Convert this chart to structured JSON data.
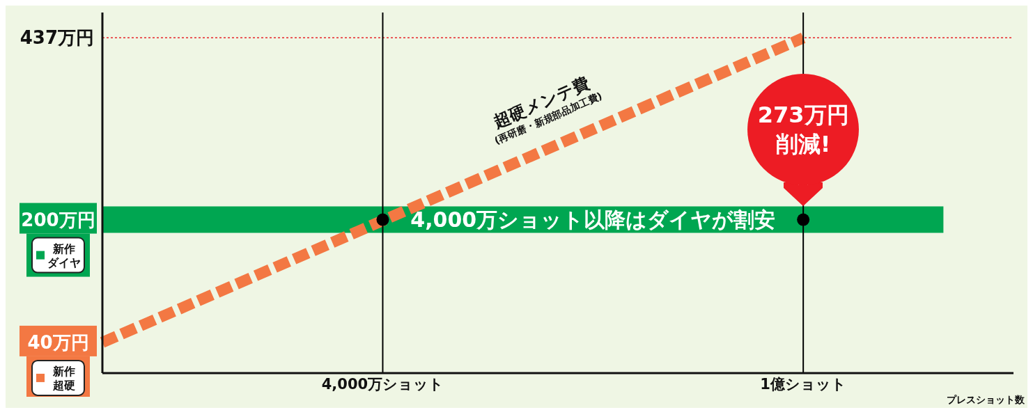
{
  "chart_data": {
    "type": "line",
    "xlabel": "プレスショット数",
    "categories": [
      null,
      null,
      null,
      null,
      "4,000万ショット",
      null,
      null,
      null,
      null,
      null,
      "1億ショット",
      null,
      null,
      null
    ],
    "ylim": [
      0,
      470
    ],
    "yticks": [
      {
        "value": 40,
        "label": "40万円"
      },
      {
        "value": 200,
        "label": "200万円"
      },
      {
        "value": 437,
        "label": "437万円"
      }
    ],
    "grid": false,
    "legend": "left",
    "marker": "none",
    "series": [
      {
        "name": "新作ダイヤ",
        "color": "#00a651",
        "values": [
          200,
          null,
          null,
          null,
          null,
          null,
          null,
          null,
          null,
          null,
          null,
          null,
          200,
          null
        ],
        "line_style": "solid"
      },
      {
        "name": "新作超硬",
        "color": "#f37843",
        "values": [
          40,
          null,
          null,
          null,
          null,
          null,
          null,
          null,
          null,
          null,
          437,
          null,
          null,
          null
        ],
        "line_style": "dashed"
      },
      {
        "type": "scatter",
        "color": "#000000",
        "marker": "circle",
        "values": [
          null,
          null,
          null,
          null,
          200,
          null,
          null,
          null,
          null,
          null,
          200,
          null,
          null,
          null
        ]
      }
    ],
    "ref_lines": [
      {
        "axis": "x",
        "value": "4,000万ショット",
        "color": "#000000"
      },
      {
        "axis": "x",
        "value": "1億ショット",
        "color": "#000000"
      },
      {
        "axis": "y",
        "value": 437,
        "color": "#e8262a",
        "line_style": "dotted"
      }
    ],
    "annotations": [
      {
        "text": "4,000万ショット以降はダイヤが割安",
        "y": 200
      },
      "超硬メンテ費",
      "(再研磨・新規部品加工費)",
      {
        "text": "273万円削減!",
        "x": "1億ショット",
        "y": 318
      }
    ]
  }
}
